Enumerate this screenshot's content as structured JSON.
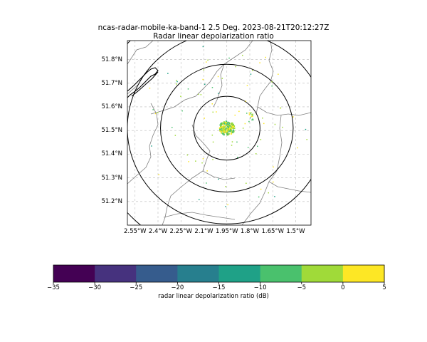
{
  "title": {
    "line1": "ncas-radar-mobile-ka-band-1 2.5 Deg. 2023-08-21T20:12:27Z",
    "line2": "Radar linear depolarization ratio"
  },
  "map": {
    "lon_range": [
      -2.6,
      -1.4
    ],
    "lat_range": [
      51.1,
      51.88
    ],
    "radar_center": {
      "lon": -1.95,
      "lat": 51.51
    },
    "range_rings_km": [
      15,
      30,
      45,
      60
    ],
    "lat_ticks": [
      "51.2°N",
      "51.3°N",
      "51.4°N",
      "51.5°N",
      "51.6°N",
      "51.7°N",
      "51.8°N"
    ],
    "lat_tick_values": [
      51.2,
      51.3,
      51.4,
      51.5,
      51.6,
      51.7,
      51.8
    ],
    "lon_ticks": [
      "2.55°W",
      "2.4°W",
      "2.25°W",
      "2.1°W",
      "1.95°W",
      "1.8°W",
      "1.65°W",
      "1.5°W"
    ],
    "lon_tick_values": [
      -2.55,
      -2.4,
      -2.25,
      -2.1,
      -1.95,
      -1.8,
      -1.65,
      -1.5
    ],
    "gridlines": true,
    "coastline_color": "#000000",
    "boundary_color": "#808080"
  },
  "colorbar": {
    "label": "radar linear depolarization ratio (dB)",
    "ticks": [
      "−35",
      "−30",
      "−25",
      "−20",
      "−15",
      "−10",
      "−5",
      "0",
      "5"
    ],
    "colors": [
      "#440154",
      "#46327e",
      "#365c8d",
      "#277f8e",
      "#1fa187",
      "#4ac16d",
      "#a0da39",
      "#fde725"
    ]
  }
}
